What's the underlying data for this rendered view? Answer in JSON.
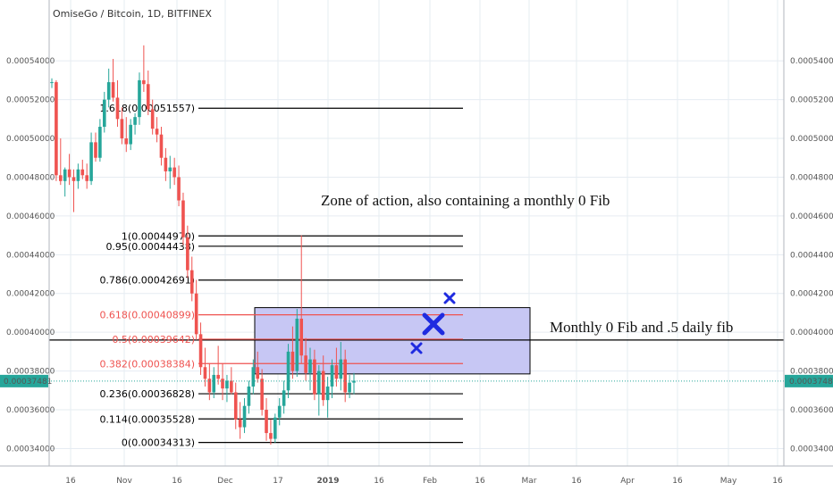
{
  "header": {
    "title": "OmiseGo / Bitcoin, 1D, BITFINEX"
  },
  "colors": {
    "up": "#26a69a",
    "down": "#ef5350",
    "zone_fill": "#c7c7f4",
    "zone_stroke": "#000000",
    "marker": "#1f2be0",
    "price_line": "#26a69a",
    "grid": "#e6ecf2"
  },
  "chart_data": {
    "type": "candlestick",
    "title": "OmiseGo / Bitcoin, 1D, BITFINEX",
    "ylim": [
      0.000331,
      0.0005585
    ],
    "y_ticks": [
      "0.00054000",
      "0.00052000",
      "0.00050000",
      "0.00048000",
      "0.00046000",
      "0.00044000",
      "0.00042000",
      "0.00040000",
      "0.00038000",
      "0.00036000",
      "0.00034000"
    ],
    "x_ticks": [
      "16",
      "Nov",
      "16",
      "Dec",
      "17",
      "2019",
      "16",
      "Feb",
      "16",
      "Mar",
      "16",
      "Apr",
      "16",
      "May",
      "16"
    ],
    "last_price": "0.00037481",
    "fib_levels": [
      {
        "label": "1.618(0.00051557)",
        "value": 0.00051557,
        "color": "#000000"
      },
      {
        "label": "1(0.00044970)",
        "value": 0.0004497,
        "color": "#000000"
      },
      {
        "label": "0.95(0.00044438)",
        "value": 0.00044438,
        "color": "#000000"
      },
      {
        "label": "0.786(0.00042691)",
        "value": 0.00042691,
        "color": "#000000"
      },
      {
        "label": "0.618(0.00040899)",
        "value": 0.00040899,
        "color": "#ef5350"
      },
      {
        "label": "0.5(0.00039642)",
        "value": 0.00039642,
        "color": "#ef5350"
      },
      {
        "label": "0.382(0.00038384)",
        "value": 0.00038384,
        "color": "#ef5350"
      },
      {
        "label": "0.236(0.00036828)",
        "value": 0.00036828,
        "color": "#000000"
      },
      {
        "label": "0.114(0.00035528)",
        "value": 0.00035528,
        "color": "#000000"
      },
      {
        "label": "0(0.00034313)",
        "value": 0.00034313,
        "color": "#000000"
      }
    ],
    "monthly_fib_line": 0.000396,
    "zone": {
      "y_top": 0.0004127,
      "y_bottom": 0.0003785
    },
    "annotations": [
      "Zone of action, also containing a monthly 0 Fib",
      "Monthly 0 Fib and .5 daily fib"
    ],
    "candles": [
      [
        0.000529,
        0.000531,
        0.000526,
        0.000529
      ],
      [
        0.000529,
        0.00053,
        0.000478,
        0.000481
      ],
      [
        0.000481,
        0.0005,
        0.000476,
        0.000478
      ],
      [
        0.000478,
        0.000485,
        0.00047,
        0.000484
      ],
      [
        0.000484,
        0.000492,
        0.000476,
        0.00048
      ],
      [
        0.00048,
        0.000484,
        0.000462,
        0.000478
      ],
      [
        0.000478,
        0.000487,
        0.000474,
        0.000484
      ],
      [
        0.000484,
        0.000489,
        0.000479,
        0.000481
      ],
      [
        0.000481,
        0.000487,
        0.000474,
        0.000478
      ],
      [
        0.000478,
        0.000503,
        0.000476,
        0.000498
      ],
      [
        0.000498,
        0.000503,
        0.000488,
        0.00049
      ],
      [
        0.00049,
        0.00051,
        0.000488,
        0.000506
      ],
      [
        0.000506,
        0.000524,
        0.000503,
        0.00052
      ],
      [
        0.00052,
        0.000536,
        0.000516,
        0.000529
      ],
      [
        0.000529,
        0.000541,
        0.000519,
        0.000521
      ],
      [
        0.000521,
        0.00053,
        0.000506,
        0.00051
      ],
      [
        0.00051,
        0.000516,
        0.000497,
        0.0005
      ],
      [
        0.0005,
        0.000511,
        0.000493,
        0.000497
      ],
      [
        0.000497,
        0.00051,
        0.000494,
        0.000507
      ],
      [
        0.000507,
        0.000513,
        0.000502,
        0.000511
      ],
      [
        0.000511,
        0.000534,
        0.000507,
        0.00053
      ],
      [
        0.00053,
        0.000548,
        0.000524,
        0.000528
      ],
      [
        0.000528,
        0.000535,
        0.000512,
        0.000515
      ],
      [
        0.000515,
        0.00052,
        0.000502,
        0.000505
      ],
      [
        0.000505,
        0.000511,
        0.000498,
        0.000502
      ],
      [
        0.000502,
        0.000506,
        0.000486,
        0.00049
      ],
      [
        0.00049,
        0.000495,
        0.000478,
        0.000483
      ],
      [
        0.000483,
        0.000491,
        0.000474,
        0.000485
      ],
      [
        0.000485,
        0.00049,
        0.000476,
        0.00048
      ],
      [
        0.00048,
        0.000486,
        0.000465,
        0.000468
      ],
      [
        0.000468,
        0.000472,
        0.000445,
        0.000449
      ],
      [
        0.000449,
        0.000455,
        0.000428,
        0.000432
      ],
      [
        0.000432,
        0.000439,
        0.000416,
        0.00042
      ],
      [
        0.00042,
        0.000427,
        0.000396,
        0.000399
      ],
      [
        0.000399,
        0.000405,
        0.000378,
        0.000382
      ],
      [
        0.000382,
        0.000392,
        0.000372,
        0.000376
      ],
      [
        0.000376,
        0.000384,
        0.000365,
        0.000369
      ],
      [
        0.000369,
        0.000382,
        0.000366,
        0.000378
      ],
      [
        0.000378,
        0.000393,
        0.000373,
        0.000376
      ],
      [
        0.000376,
        0.000384,
        0.000365,
        0.000371
      ],
      [
        0.000371,
        0.000378,
        0.000364,
        0.000375
      ],
      [
        0.000375,
        0.000382,
        0.000368,
        0.000369
      ],
      [
        0.000369,
        0.000374,
        0.00035,
        0.000355
      ],
      [
        0.000355,
        0.000364,
        0.000345,
        0.000351
      ],
      [
        0.000351,
        0.000366,
        0.000348,
        0.000362
      ],
      [
        0.000362,
        0.000375,
        0.000358,
        0.000372
      ],
      [
        0.000372,
        0.000386,
        0.000368,
        0.000382
      ],
      [
        0.000382,
        0.00039,
        0.000374,
        0.000376
      ],
      [
        0.000376,
        0.000381,
        0.000357,
        0.00036
      ],
      [
        0.00036,
        0.000366,
        0.000344,
        0.000348
      ],
      [
        0.000348,
        0.000355,
        0.000342,
        0.000345
      ],
      [
        0.000345,
        0.000358,
        0.000343,
        0.000356
      ],
      [
        0.000356,
        0.000366,
        0.000352,
        0.000362
      ],
      [
        0.000362,
        0.000375,
        0.000358,
        0.00037
      ],
      [
        0.00037,
        0.000394,
        0.000366,
        0.00039
      ],
      [
        0.00039,
        0.000403,
        0.000376,
        0.00038
      ],
      [
        0.00038,
        0.000412,
        0.000377,
        0.000407
      ],
      [
        0.000407,
        0.00045,
        0.000384,
        0.000388
      ],
      [
        0.000388,
        0.000397,
        0.000375,
        0.000379
      ],
      [
        0.000379,
        0.000392,
        0.00037,
        0.000386
      ],
      [
        0.000386,
        0.000391,
        0.000365,
        0.000368
      ],
      [
        0.000368,
        0.000383,
        0.000357,
        0.00038
      ],
      [
        0.00038,
        0.000388,
        0.000362,
        0.000365
      ],
      [
        0.000365,
        0.000377,
        0.000356,
        0.000372
      ],
      [
        0.000372,
        0.000386,
        0.000366,
        0.000383
      ],
      [
        0.000383,
        0.000392,
        0.000372,
        0.000376
      ],
      [
        0.000376,
        0.000395,
        0.00037,
        0.000386
      ],
      [
        0.000386,
        0.000391,
        0.000364,
        0.000369
      ],
      [
        0.000369,
        0.000378,
        0.000366,
        0.000374
      ],
      [
        0.000374,
        0.000379,
        0.000368,
        0.000375
      ]
    ]
  }
}
